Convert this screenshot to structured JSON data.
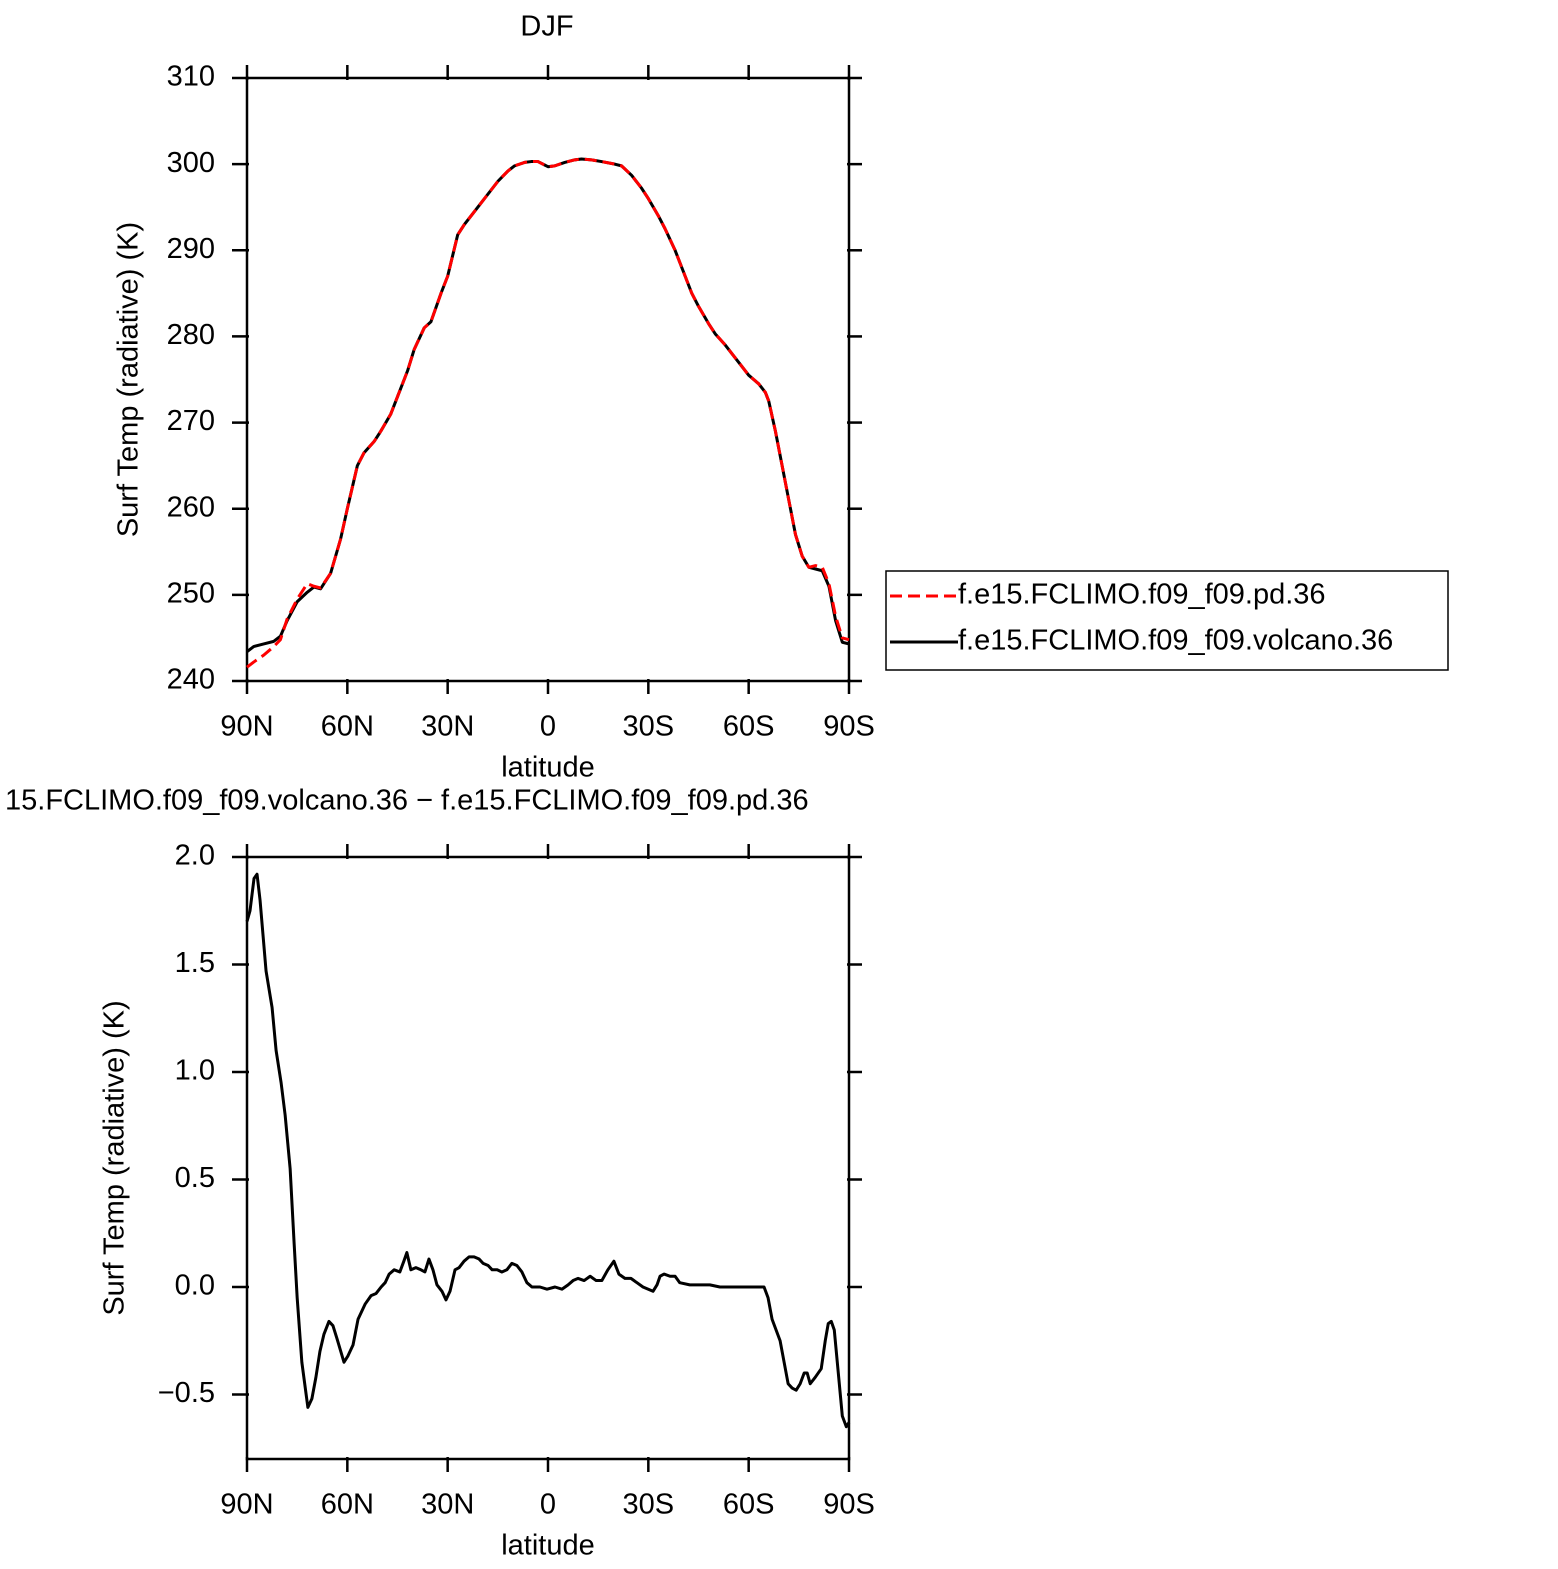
{
  "chart_data": [
    {
      "type": "line",
      "title": "DJF",
      "xlabel": "latitude",
      "ylabel": "Surf Temp (radiative) (K)",
      "xlim": [
        90,
        -90
      ],
      "xticks": [
        {
          "value": 90,
          "label": "90N"
        },
        {
          "value": 60,
          "label": "60N"
        },
        {
          "value": 30,
          "label": "30N"
        },
        0,
        {
          "value": -30,
          "label": "30S"
        },
        {
          "value": -60,
          "label": "60S"
        },
        {
          "value": -90,
          "label": "90S"
        }
      ],
      "ylim": [
        240,
        310
      ],
      "yticks": [
        240,
        250,
        260,
        270,
        280,
        290,
        300,
        310
      ],
      "legend": "outside-right",
      "x": [
        90,
        88,
        85,
        82,
        80,
        78,
        75,
        72,
        70,
        68,
        65,
        62,
        60,
        57,
        55,
        52,
        50,
        47,
        45,
        42,
        40,
        37,
        35,
        32,
        30,
        27,
        25,
        22,
        20,
        17,
        15,
        12,
        10,
        7,
        5,
        3,
        1,
        0,
        -2,
        -5,
        -8,
        -10,
        -13,
        -16,
        -20,
        -22,
        -25,
        -28,
        -30,
        -33,
        -35,
        -38,
        -40,
        -43,
        -45,
        -48,
        -50,
        -53,
        -55,
        -58,
        -60,
        -63,
        -65,
        -66,
        -68,
        -70,
        -72,
        -74,
        -76,
        -78,
        -80,
        -82,
        -84,
        -86,
        -88,
        -90
      ],
      "series": [
        {
          "name": "f.e15.FCLIMO.f09_f09.pd.36",
          "color": "#ff0000",
          "style": "dashed",
          "values": [
            241.6,
            242.2,
            243.0,
            244.0,
            244.8,
            247.2,
            249.5,
            251.3,
            251.0,
            250.8,
            252.5,
            256.5,
            260.0,
            265.0,
            266.5,
            267.8,
            269.0,
            271.0,
            273.0,
            276.0,
            278.5,
            281.0,
            281.7,
            285.0,
            287.0,
            291.8,
            293.0,
            294.5,
            295.5,
            297.0,
            298.0,
            299.2,
            299.8,
            300.2,
            300.3,
            300.3,
            299.9,
            299.7,
            299.8,
            300.2,
            300.5,
            300.6,
            300.5,
            300.3,
            300.0,
            299.8,
            298.7,
            297.2,
            296.0,
            294.0,
            292.5,
            290.0,
            288.0,
            285.0,
            283.5,
            281.5,
            280.3,
            279.0,
            278.0,
            276.5,
            275.5,
            274.5,
            273.5,
            272.5,
            269.0,
            265.0,
            261.0,
            257.0,
            254.5,
            253.2,
            253.4,
            253.2,
            251.3,
            247.5,
            245.0,
            244.8
          ]
        },
        {
          "name": "f.e15.FCLIMO.f09_f09.volcano.36",
          "color": "#000000",
          "style": "solid",
          "values": [
            243.4,
            244.0,
            244.3,
            244.6,
            245.2,
            247.0,
            249.2,
            250.3,
            250.9,
            250.7,
            252.5,
            256.5,
            260.0,
            265.0,
            266.5,
            267.8,
            269.0,
            271.0,
            273.0,
            276.0,
            278.5,
            281.0,
            281.7,
            285.0,
            287.0,
            291.8,
            293.0,
            294.5,
            295.5,
            297.0,
            298.0,
            299.2,
            299.8,
            300.2,
            300.3,
            300.3,
            299.9,
            299.7,
            299.8,
            300.2,
            300.5,
            300.6,
            300.5,
            300.3,
            300.0,
            299.8,
            298.7,
            297.2,
            296.0,
            294.0,
            292.5,
            290.0,
            288.0,
            285.0,
            283.5,
            281.5,
            280.3,
            279.0,
            278.0,
            276.5,
            275.5,
            274.5,
            273.5,
            272.5,
            269.0,
            265.0,
            261.0,
            257.0,
            254.5,
            253.2,
            253.0,
            252.8,
            251.0,
            247.0,
            244.5,
            244.3
          ]
        }
      ]
    },
    {
      "type": "line",
      "title": "15.FCLIMO.f09_f09.volcano.36 − f.e15.FCLIMO.f09_f09.pd.36",
      "xlabel": "latitude",
      "ylabel": "Surf Temp (radiative) (K)",
      "xlim": [
        90,
        -90
      ],
      "xticks": [
        {
          "value": 90,
          "label": "90N"
        },
        {
          "value": 60,
          "label": "60N"
        },
        {
          "value": 30,
          "label": "30N"
        },
        0,
        {
          "value": -30,
          "label": "30S"
        },
        {
          "value": -60,
          "label": "60S"
        },
        {
          "value": -90,
          "label": "90S"
        }
      ],
      "ylim": [
        -0.8,
        2.0
      ],
      "yticks": [
        {
          "value": -0.5,
          "label": "−0.5"
        },
        {
          "value": 0,
          "label": "0.0"
        },
        0.5,
        {
          "value": 1,
          "label": "1.0"
        },
        1.5,
        {
          "value": 2,
          "label": "2.0"
        }
      ],
      "x": [
        90,
        89.1,
        87.9,
        87,
        86.1,
        84.3,
        82.5,
        81.3,
        79.8,
        78.6,
        77.1,
        75.9,
        75,
        73.6,
        71.8,
        70.6,
        69.4,
        68.2,
        67,
        65.5,
        64.3,
        63.1,
        61,
        59.8,
        58.3,
        56.8,
        54.7,
        52.9,
        51.4,
        49.9,
        48.7,
        47.5,
        46,
        44.3,
        43.1,
        42.2,
        41,
        39.5,
        38,
        36.8,
        35.6,
        34.4,
        33.2,
        31.7,
        30.5,
        29.3,
        27.8,
        26.6,
        25.1,
        23.6,
        22.1,
        20.6,
        19.4,
        17.9,
        16.7,
        15.2,
        13.8,
        12.3,
        10.8,
        9.3,
        7.8,
        6.3,
        4.8,
        2.4,
        0.3,
        -2.1,
        -4.2,
        -6,
        -7.5,
        -9,
        -10.8,
        -12.6,
        -14.4,
        -16.1,
        -17.9,
        -19.7,
        -21.2,
        -23,
        -24.8,
        -26.6,
        -28.4,
        -29.9,
        -31.4,
        -32.6,
        -33.5,
        -34.7,
        -36.5,
        -38,
        -39.4,
        -42.4,
        -45.4,
        -48.4,
        -51.4,
        -57.4,
        -63.4,
        -64.6,
        -65.8,
        -67,
        -68.2,
        -69.4,
        -70.6,
        -71.8,
        -73,
        -74.2,
        -75.4,
        -76.6,
        -77.5,
        -78.4,
        -79.9,
        -81.7,
        -82.9,
        -83.8,
        -84.7,
        -85.6,
        -86.8,
        -88,
        -89.2,
        -90
      ],
      "series": [
        {
          "color": "#000000",
          "style": "solid",
          "values": [
            1.7,
            1.75,
            1.9,
            1.92,
            1.8,
            1.47,
            1.3,
            1.1,
            0.95,
            0.8,
            0.55,
            0.2,
            -0.05,
            -0.35,
            -0.56,
            -0.52,
            -0.42,
            -0.3,
            -0.22,
            -0.16,
            -0.18,
            -0.24,
            -0.35,
            -0.32,
            -0.27,
            -0.15,
            -0.08,
            -0.04,
            -0.03,
            0.0,
            0.02,
            0.06,
            0.08,
            0.07,
            0.12,
            0.16,
            0.08,
            0.09,
            0.08,
            0.07,
            0.13,
            0.08,
            0.01,
            -0.02,
            -0.06,
            -0.02,
            0.08,
            0.09,
            0.12,
            0.14,
            0.14,
            0.13,
            0.11,
            0.1,
            0.08,
            0.08,
            0.07,
            0.08,
            0.11,
            0.1,
            0.07,
            0.02,
            0.0,
            0.0,
            -0.01,
            0.0,
            -0.01,
            0.01,
            0.03,
            0.04,
            0.03,
            0.05,
            0.03,
            0.03,
            0.08,
            0.12,
            0.06,
            0.04,
            0.04,
            0.02,
            0.0,
            -0.01,
            -0.02,
            0.01,
            0.05,
            0.06,
            0.05,
            0.05,
            0.02,
            0.01,
            0.01,
            0.01,
            0.0,
            0.0,
            0.0,
            0.0,
            -0.05,
            -0.15,
            -0.2,
            -0.25,
            -0.35,
            -0.45,
            -0.47,
            -0.48,
            -0.45,
            -0.4,
            -0.4,
            -0.45,
            -0.42,
            -0.38,
            -0.25,
            -0.17,
            -0.16,
            -0.2,
            -0.4,
            -0.6,
            -0.65,
            -0.63
          ]
        }
      ]
    }
  ]
}
